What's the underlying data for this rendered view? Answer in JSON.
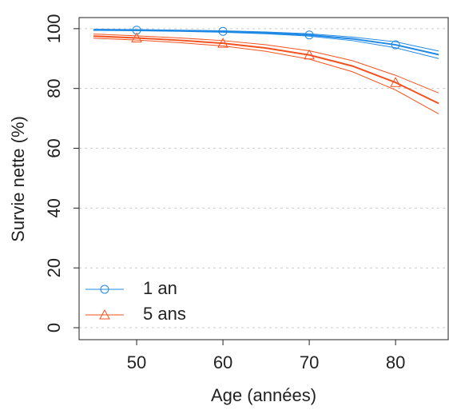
{
  "chart_data": {
    "type": "line",
    "x_label": "Age (années)",
    "y_label": "Survie nette (%)",
    "xlim": [
      43.33,
      86.1
    ],
    "ylim": [
      -4.0,
      103.7
    ],
    "xticks": [
      50,
      60,
      70,
      80
    ],
    "yticks": [
      0,
      20,
      40,
      60,
      80,
      100
    ],
    "grid": true,
    "legend": "bottom-left",
    "x": [
      45,
      50,
      55,
      60,
      65,
      70,
      75,
      80,
      85
    ],
    "marker_x": [
      50,
      60,
      70,
      80
    ],
    "series": [
      {
        "name": "1 an",
        "color": "#1e88e5",
        "marker": "circle",
        "values": [
          99.6,
          99.5,
          99.3,
          99.1,
          98.6,
          97.9,
          96.6,
          94.6,
          91.3
        ],
        "lower": [
          99.4,
          99.3,
          99.1,
          98.8,
          98.3,
          97.5,
          96.0,
          93.6,
          90.0
        ],
        "upper": [
          99.8,
          99.7,
          99.5,
          99.3,
          98.9,
          98.3,
          97.2,
          95.6,
          92.5
        ]
      },
      {
        "name": "5 ans",
        "color": "#f4511e",
        "marker": "triangle",
        "values": [
          97.5,
          96.9,
          96.1,
          95.1,
          93.5,
          91.2,
          87.5,
          82.0,
          75.0
        ],
        "lower": [
          96.8,
          96.2,
          95.3,
          94.2,
          92.4,
          89.8,
          85.6,
          79.5,
          71.5
        ],
        "upper": [
          98.2,
          97.6,
          96.9,
          96.0,
          94.6,
          92.6,
          89.3,
          84.4,
          78.5
        ]
      }
    ]
  }
}
